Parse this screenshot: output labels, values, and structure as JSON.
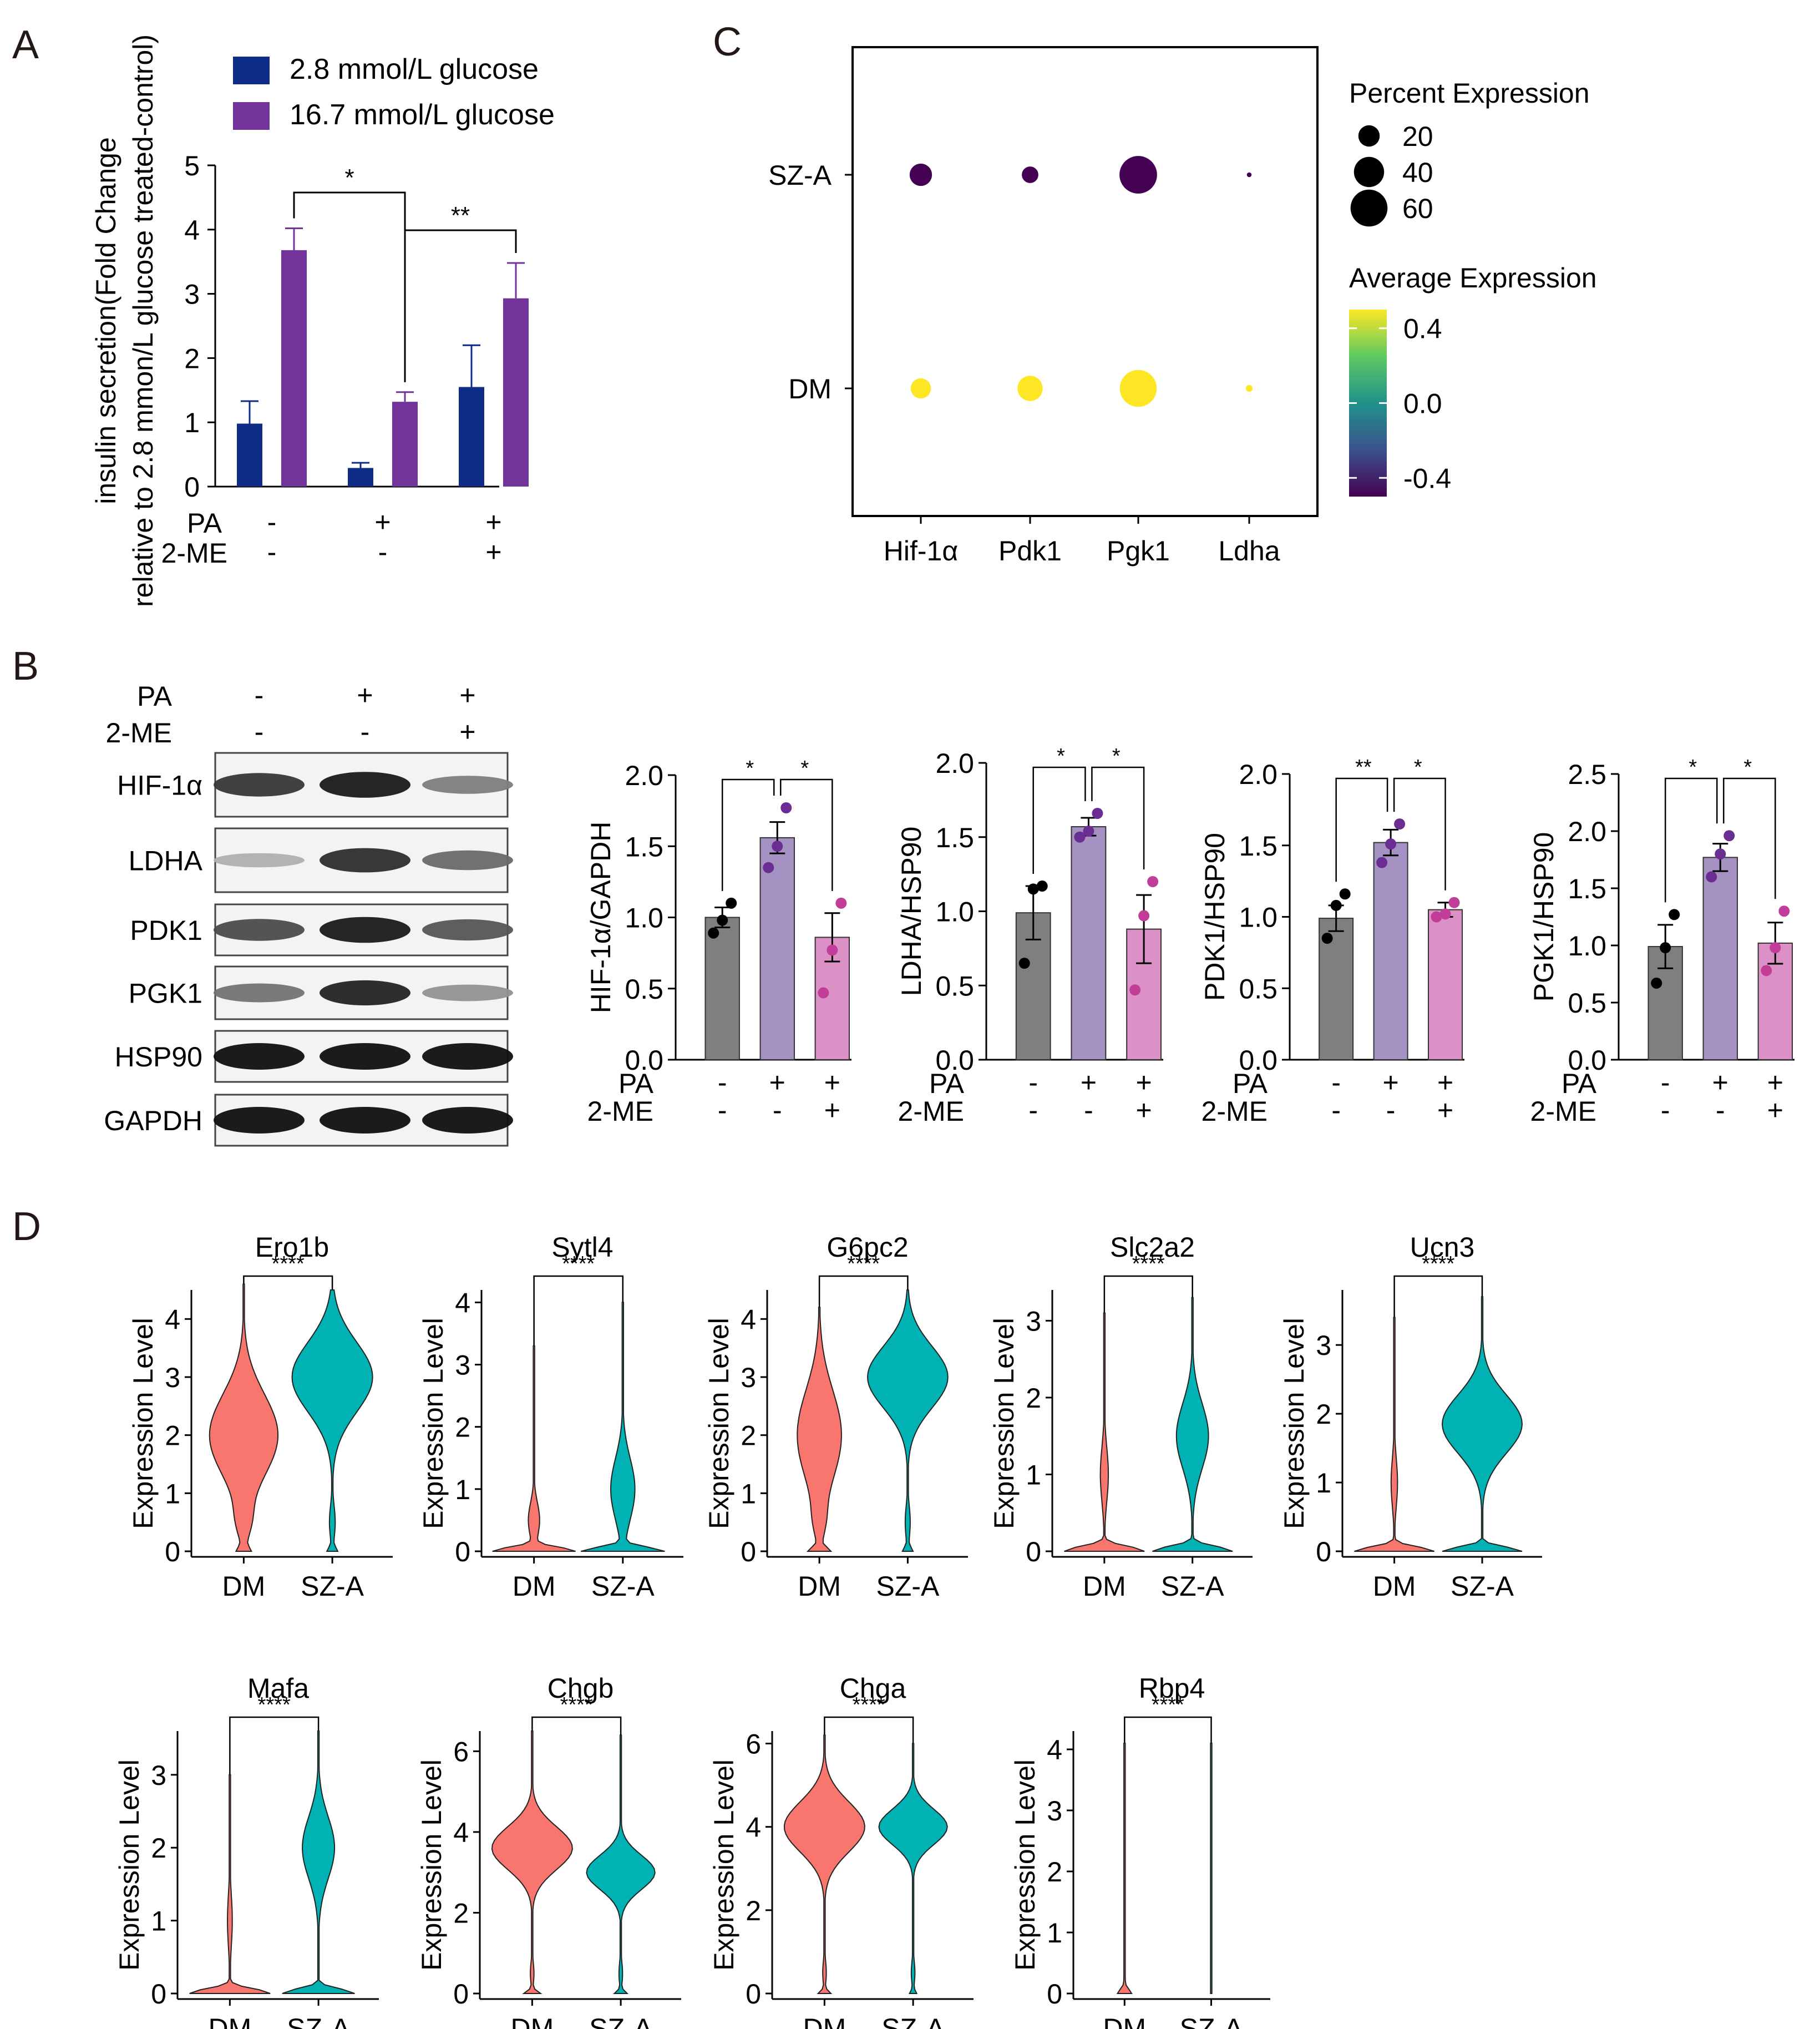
{
  "panels": {
    "A": "A",
    "B": "B",
    "C": "C",
    "D": "D"
  },
  "colors": {
    "navy": "#0f2c86",
    "purple": "#72339b",
    "grey": "#7f7f7f",
    "lavender": "#a592c3",
    "pink": "#dc91c6",
    "dot_black": "#000000",
    "dot_purple": "#6a2d91",
    "dot_pink": "#c23d98",
    "violin_dm": "#f8766d",
    "violin_sza": "#00b2b3"
  },
  "chart_data": [
    {
      "id": "A",
      "type": "bar",
      "ylabel_line1": "insulin secretion(Fold Change",
      "ylabel_line2": "relative to 2.8 mmon/L glucose treated-control)",
      "ylim": [
        0,
        5
      ],
      "yticks": [
        "0",
        "1",
        "2",
        "3",
        "4",
        "5"
      ],
      "groups": [
        {
          "PA": "-",
          "ME": "-"
        },
        {
          "PA": "+",
          "ME": "-"
        },
        {
          "PA": "+",
          "ME": "+"
        }
      ],
      "row_labels": [
        "PA",
        "2-ME"
      ],
      "series": [
        {
          "name": "2.8 mmol/L glucose",
          "values": [
            0.98,
            0.29,
            1.55
          ],
          "errors": [
            0.35,
            0.08,
            0.65
          ]
        },
        {
          "name": "16.7 mmol/L glucose",
          "values": [
            3.68,
            1.32,
            2.93
          ],
          "errors": [
            0.34,
            0.15,
            0.55
          ]
        }
      ],
      "sig": [
        {
          "label": "*",
          "from": [
            0,
            1
          ],
          "to": [
            1,
            1
          ]
        },
        {
          "label": "**",
          "from": [
            1,
            1
          ],
          "to": [
            2,
            1
          ]
        }
      ]
    },
    {
      "id": "B-blot",
      "type": "table",
      "header": {
        "PA": [
          "-",
          "+",
          "+"
        ],
        "ME": [
          "-",
          "-",
          "+"
        ],
        "pa_label": "PA",
        "me_label": "2-ME"
      },
      "bands": [
        {
          "name": "HIF-1α",
          "intensity": [
            0.8,
            0.95,
            0.45
          ]
        },
        {
          "name": "LDHA",
          "intensity": [
            0.2,
            0.85,
            0.55
          ]
        },
        {
          "name": "PDK1",
          "intensity": [
            0.7,
            0.95,
            0.65
          ]
        },
        {
          "name": "PGK1",
          "intensity": [
            0.5,
            0.9,
            0.35
          ]
        },
        {
          "name": "HSP90",
          "intensity": [
            1.0,
            1.0,
            1.0
          ]
        },
        {
          "name": "GAPDH",
          "intensity": [
            1.0,
            1.0,
            1.0
          ]
        }
      ]
    },
    {
      "id": "B1",
      "type": "bar",
      "ylabel": "HIF-1α/GAPDH",
      "ylim": [
        0,
        2.0
      ],
      "yticks": [
        "0.0",
        "0.5",
        "1.0",
        "1.5",
        "2.0"
      ],
      "values": [
        1.0,
        1.56,
        0.86
      ],
      "errors": [
        0.07,
        0.11,
        0.17
      ],
      "points": [
        [
          0.89,
          0.98,
          1.1
        ],
        [
          1.35,
          1.5,
          1.77
        ],
        [
          0.47,
          0.77,
          1.1
        ]
      ],
      "pa": [
        "-",
        "+",
        "+"
      ],
      "me": [
        "-",
        "-",
        "+"
      ],
      "sig": [
        "*",
        "*"
      ]
    },
    {
      "id": "B2",
      "type": "bar",
      "ylabel": "LDHA/HSP90",
      "ylim": [
        0,
        2.0
      ],
      "yticks": [
        "0.0",
        "0.5",
        "1.0",
        "1.5",
        "2.0"
      ],
      "values": [
        0.99,
        1.57,
        0.88
      ],
      "errors": [
        0.18,
        0.06,
        0.23
      ],
      "points": [
        [
          0.65,
          1.15,
          1.17
        ],
        [
          1.5,
          1.54,
          1.66
        ],
        [
          0.47,
          0.97,
          1.2
        ]
      ],
      "pa": [
        "-",
        "+",
        "+"
      ],
      "me": [
        "-",
        "-",
        "+"
      ],
      "sig": [
        "*",
        "*"
      ]
    },
    {
      "id": "B3",
      "type": "bar",
      "ylabel": "PDK1/HSP90",
      "ylim": [
        0,
        2.0
      ],
      "yticks": [
        "0.0",
        "0.5",
        "1.0",
        "1.5",
        "2.0"
      ],
      "values": [
        0.99,
        1.52,
        1.05
      ],
      "errors": [
        0.09,
        0.09,
        0.05
      ],
      "points": [
        [
          0.85,
          1.08,
          1.16
        ],
        [
          1.38,
          1.51,
          1.65
        ],
        [
          1.0,
          1.02,
          1.1
        ]
      ],
      "pa": [
        "-",
        "+",
        "+"
      ],
      "me": [
        "-",
        "-",
        "+"
      ],
      "sig": [
        "**",
        "*"
      ]
    },
    {
      "id": "B4",
      "type": "bar",
      "ylabel": "PGK1/HSP90",
      "ylim": [
        0,
        2.5
      ],
      "yticks": [
        "0.0",
        "0.5",
        "1.0",
        "1.5",
        "2.0",
        "2.5"
      ],
      "values": [
        0.99,
        1.77,
        1.02
      ],
      "errors": [
        0.19,
        0.12,
        0.18
      ],
      "points": [
        [
          0.67,
          0.98,
          1.27
        ],
        [
          1.6,
          1.8,
          1.96
        ],
        [
          0.78,
          0.98,
          1.3
        ]
      ],
      "pa": [
        "-",
        "+",
        "+"
      ],
      "me": [
        "-",
        "-",
        "+"
      ],
      "sig": [
        "*",
        "*"
      ]
    },
    {
      "id": "C",
      "type": "scatter",
      "genes": [
        "Hif-1α",
        "Pdk1",
        "Pgk1",
        "Ldha"
      ],
      "groups": [
        "SZ-A",
        "DM"
      ],
      "percent": [
        [
          22,
          12,
          62,
          1
        ],
        [
          18,
          28,
          60,
          2
        ]
      ],
      "average": [
        [
          -0.5,
          -0.5,
          -0.5,
          -0.5
        ],
        [
          0.5,
          0.5,
          0.5,
          0.5
        ]
      ],
      "size_legend_title": "Percent Expression",
      "size_legend": [
        "20",
        "40",
        "60"
      ],
      "color_legend_title": "Average Expression",
      "color_ticks": [
        "0.4",
        "0.0",
        "-0.4"
      ],
      "color_range": [
        -0.5,
        0.5
      ]
    },
    {
      "id": "D",
      "type": "violin",
      "ylabel": "Expression Level",
      "groups": [
        "DM",
        "SZ-A"
      ],
      "sig": "****",
      "plots": [
        {
          "gene": "Ero1b",
          "ymax": 4.5,
          "yticks": [
            0,
            1,
            2,
            3,
            4
          ],
          "top": [
            4.6,
            4.5
          ],
          "zero": [
            0.15,
            0.12
          ],
          "peak": [
            2.0,
            3.0
          ],
          "width": [
            0.85,
            1.0
          ],
          "spread": [
            1.0,
            0.85
          ],
          "tail": [
            0.7,
            0.4
          ]
        },
        {
          "gene": "Sytl4",
          "ymax": 4.2,
          "yticks": [
            0,
            1,
            2,
            3,
            4
          ],
          "top": [
            3.3,
            4.0
          ],
          "zero": [
            1.0,
            1.0
          ],
          "peak": [
            0.5,
            1.0
          ],
          "width": [
            0.14,
            0.3
          ],
          "spread": [
            0.4,
            0.7
          ],
          "tail": [
            0.0,
            0.0
          ]
        },
        {
          "gene": "G6pc2",
          "ymax": 4.5,
          "yticks": [
            0,
            1,
            2,
            3,
            4
          ],
          "top": [
            4.2,
            4.5
          ],
          "zero": [
            0.25,
            0.12
          ],
          "peak": [
            2.0,
            3.0
          ],
          "width": [
            0.55,
            1.0
          ],
          "spread": [
            1.1,
            0.75
          ],
          "tail": [
            0.5,
            0.35
          ]
        },
        {
          "gene": "Slc2a2",
          "ymax": 3.4,
          "yticks": [
            0,
            1,
            2,
            3
          ],
          "top": [
            3.1,
            3.3
          ],
          "zero": [
            1.0,
            1.0
          ],
          "peak": [
            1.0,
            1.5
          ],
          "width": [
            0.1,
            0.4
          ],
          "spread": [
            0.5,
            0.6
          ],
          "tail": [
            0.0,
            0.0
          ]
        },
        {
          "gene": "Ucn3",
          "ymax": 3.8,
          "yticks": [
            0,
            1,
            2,
            3
          ],
          "top": [
            3.4,
            3.7
          ],
          "zero": [
            1.0,
            1.0
          ],
          "peak": [
            1.0,
            1.85
          ],
          "width": [
            0.08,
            1.0
          ],
          "spread": [
            0.5,
            0.6
          ],
          "tail": [
            0.0,
            0.0
          ]
        },
        {
          "gene": "Mafa",
          "ymax": 3.6,
          "yticks": [
            0,
            1,
            2,
            3
          ],
          "top": [
            3.0,
            3.6
          ],
          "zero": [
            1.0,
            0.9
          ],
          "peak": [
            1.0,
            2.0
          ],
          "width": [
            0.06,
            0.4
          ],
          "spread": [
            0.5,
            0.6
          ],
          "tail": [
            0.0,
            0.0
          ]
        },
        {
          "gene": "Chgb",
          "ymax": 6.5,
          "yticks": [
            0,
            2,
            4,
            6
          ],
          "top": [
            6.5,
            6.4
          ],
          "zero": [
            0.2,
            0.15
          ],
          "peak": [
            3.6,
            3.0
          ],
          "width": [
            1.0,
            0.85
          ],
          "spread": [
            0.75,
            0.6
          ],
          "tail": [
            0.25,
            0.25
          ]
        },
        {
          "gene": "Chga",
          "ymax": 6.3,
          "yticks": [
            0,
            2,
            4,
            6
          ],
          "top": [
            6.2,
            6.0
          ],
          "zero": [
            0.15,
            0.08
          ],
          "peak": [
            4.0,
            4.0
          ],
          "width": [
            1.0,
            0.85
          ],
          "spread": [
            0.85,
            0.6
          ],
          "tail": [
            0.25,
            0.25
          ]
        },
        {
          "gene": "Rbp4",
          "ymax": 4.3,
          "yticks": [
            0,
            1,
            2,
            3,
            4
          ],
          "top": [
            4.1,
            4.1
          ],
          "zero": [
            0.15,
            0.0
          ],
          "peak": [
            0.0,
            0.0
          ],
          "width": [
            0.03,
            0.0
          ],
          "spread": [
            0.3,
            0.3
          ],
          "tail": [
            0.0,
            0.0
          ]
        }
      ]
    }
  ]
}
